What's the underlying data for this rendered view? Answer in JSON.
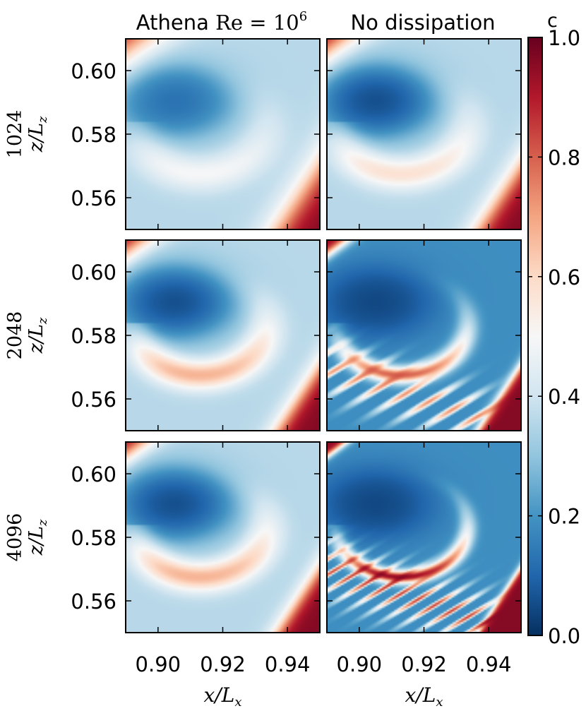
{
  "chart_data": {
    "type": "heatmap",
    "column_titles": [
      "Athena Re = 10^6",
      "No dissipation"
    ],
    "column_title_display": [
      {
        "prefix": "Athena ",
        "math": "Re = 10",
        "sup": "6"
      },
      {
        "prefix": "No dissipation",
        "math": "",
        "sup": ""
      }
    ],
    "row_labels": [
      "1024",
      "2048",
      "4096"
    ],
    "ylabel": "z/L_z",
    "xlabel": "x/L_x",
    "ylabel_display": {
      "var": "z/L",
      "sub": "z"
    },
    "xlabel_display": {
      "var": "x/L",
      "sub": "x"
    },
    "xlim": [
      0.89,
      0.95
    ],
    "ylim": [
      0.55,
      0.61
    ],
    "x_ticks": [
      0.9,
      0.92,
      0.94
    ],
    "x_tick_labels": [
      "0.90",
      "0.92",
      "0.94"
    ],
    "y_ticks": [
      0.56,
      0.58,
      0.6
    ],
    "y_tick_labels": [
      "0.56",
      "0.58",
      "0.60"
    ],
    "colorbar": {
      "label": "c",
      "range": [
        0.0,
        1.0
      ],
      "ticks": [
        0.0,
        0.2,
        0.4,
        0.6,
        0.8,
        1.0
      ],
      "tick_labels": [
        "0.0",
        "0.2",
        "0.4",
        "0.6",
        "0.8",
        "1.0"
      ],
      "colormap": "RdBu_r",
      "stops": [
        "#053061",
        "#2166ac",
        "#4393c3",
        "#92c5de",
        "#d1e5f0",
        "#f7f7f7",
        "#fddbc7",
        "#f4a582",
        "#d6604d",
        "#b2182b",
        "#67001f"
      ]
    },
    "panels": [
      {
        "row": "1024",
        "column": "Athena Re = 10^6",
        "features": {
          "vortex": 0.12,
          "tongue": 0.5,
          "tongue_width": 0.0065,
          "edge_sharpness": 0.004,
          "layers": 0
        }
      },
      {
        "row": "1024",
        "column": "No dissipation",
        "features": {
          "vortex": 0.05,
          "tongue": 0.58,
          "tongue_width": 0.006,
          "edge_sharpness": 0.003,
          "layers": 0
        }
      },
      {
        "row": "2048",
        "column": "Athena Re = 10^6",
        "features": {
          "vortex": 0.05,
          "tongue": 0.68,
          "tongue_width": 0.0055,
          "edge_sharpness": 0.0025,
          "layers": 0
        }
      },
      {
        "row": "2048",
        "column": "No dissipation",
        "features": {
          "vortex": 0.03,
          "tongue": 0.82,
          "tongue_width": 0.0035,
          "edge_sharpness": 0.0012,
          "layers": 1
        }
      },
      {
        "row": "4096",
        "column": "Athena Re = 10^6",
        "features": {
          "vortex": 0.05,
          "tongue": 0.68,
          "tongue_width": 0.0055,
          "edge_sharpness": 0.0022,
          "layers": 0
        }
      },
      {
        "row": "4096",
        "column": "No dissipation",
        "features": {
          "vortex": 0.03,
          "tongue": 0.97,
          "tongue_width": 0.0028,
          "edge_sharpness": 0.0008,
          "layers": 2
        }
      }
    ]
  }
}
